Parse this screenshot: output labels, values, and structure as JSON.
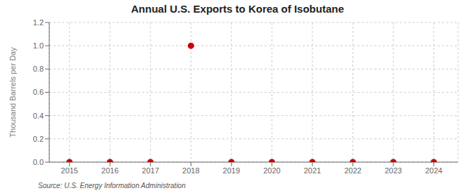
{
  "chart_data": {
    "type": "scatter",
    "title": "Annual U.S. Exports to Korea of Isobutane",
    "y_label": "Thousand Barrels per Day",
    "annotations": [
      "Source: U.S. Energy Information Administration"
    ],
    "x": [
      2015,
      2016,
      2017,
      2018,
      2019,
      2020,
      2021,
      2022,
      2023,
      2024
    ],
    "values": [
      0.0,
      0.0,
      0.0,
      1.0,
      0.0,
      0.0,
      0.0,
      0.0,
      0.0,
      0.0
    ],
    "color": "#CC0000",
    "marker": "circle",
    "xlim": [
      2014.5,
      2024.6
    ],
    "xticks": [
      2015,
      2016,
      2017,
      2018,
      2019,
      2020,
      2021,
      2022,
      2023,
      2024
    ],
    "ylim": [
      0.0,
      1.2
    ],
    "yticks": [
      {
        "value": 0.0,
        "label": "0.0"
      },
      0.2,
      0.4,
      0.6,
      0.8,
      {
        "value": 1.0,
        "label": "1.0"
      },
      1.2
    ],
    "grid": true
  }
}
